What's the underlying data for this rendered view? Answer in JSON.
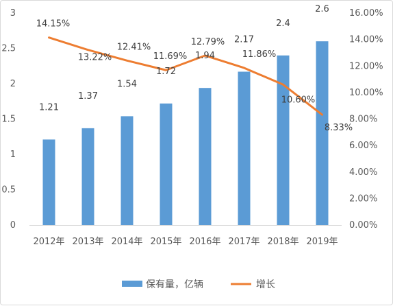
{
  "chart_data": {
    "type": "bar",
    "categories": [
      "2012年",
      "2013年",
      "2014年",
      "2015年",
      "2016年",
      "2017年",
      "2018年",
      "2019年"
    ],
    "series": [
      {
        "name": "保有量，亿辆",
        "type": "bar",
        "axis": "left",
        "color": "#5b9bd5",
        "values": [
          1.21,
          1.37,
          1.54,
          1.72,
          1.94,
          2.17,
          2.4,
          2.6
        ],
        "labels": [
          "1.21",
          "1.37",
          "1.54",
          "1.72",
          "1.94",
          "2.17",
          "2.4",
          "2.6"
        ]
      },
      {
        "name": "增长",
        "type": "line",
        "axis": "right",
        "color": "#ed7d31",
        "values": [
          14.15,
          13.22,
          12.41,
          11.69,
          12.79,
          11.86,
          10.6,
          8.33
        ],
        "labels": [
          "14.15%",
          "13.22%",
          "12.41%",
          "11.69%",
          "12.79%",
          "11.86%",
          "10.60%",
          "8.33%"
        ]
      }
    ],
    "y_left": {
      "ylim": [
        0,
        3
      ],
      "ticks": [
        "0",
        "0.5",
        "1",
        "1.5",
        "2",
        "2.5",
        "3"
      ]
    },
    "y_right": {
      "ylim": [
        0,
        16
      ],
      "ticks": [
        "0.00%",
        "2.00%",
        "4.00%",
        "6.00%",
        "8.00%",
        "10.00%",
        "12.00%",
        "14.00%",
        "16.00%"
      ]
    },
    "grid": false,
    "legend_position": "bottom"
  }
}
